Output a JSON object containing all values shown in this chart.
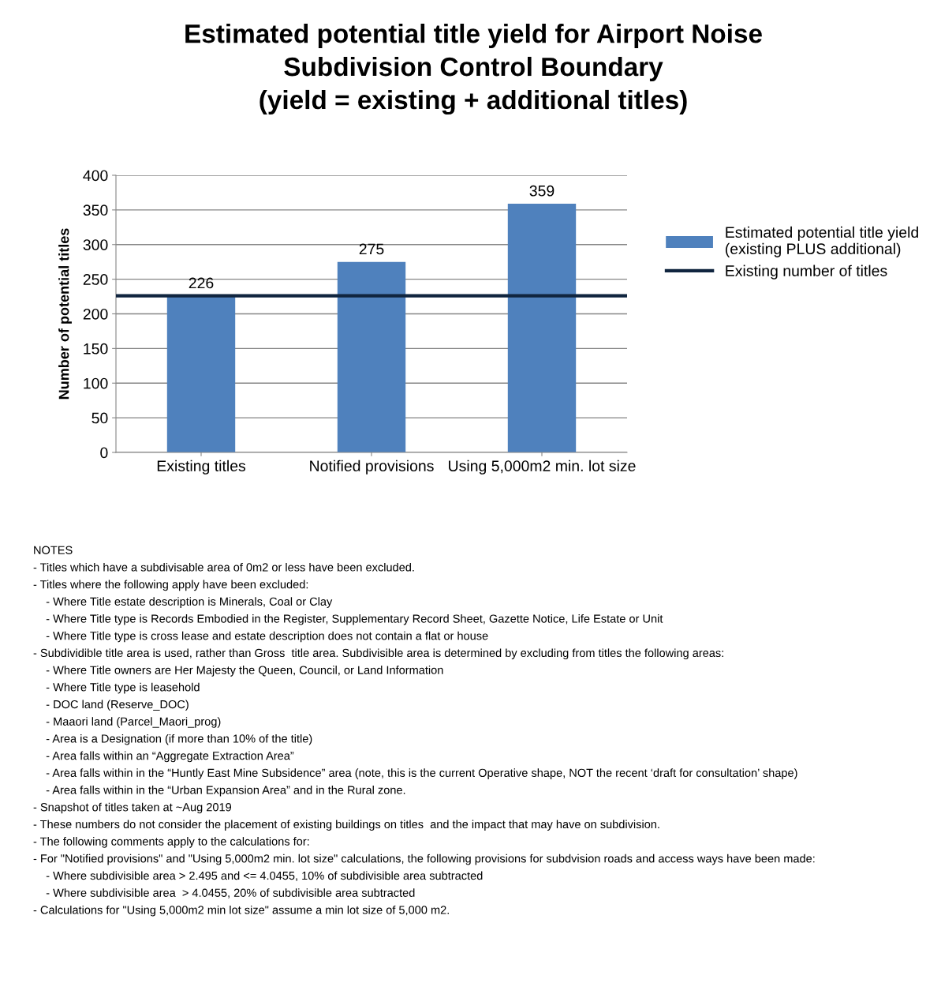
{
  "chart_data": {
    "type": "bar",
    "title": "Estimated potential title yield for Airport Noise\nSubdivision Control Boundary\n(yield = existing + additional titles)",
    "ylabel": "Number of potential titles",
    "categories": [
      "Existing titles",
      "Notified provisions",
      "Using 5,000m2 min. lot size"
    ],
    "series": [
      {
        "name": "Estimated potential title yield\n(existing PLUS additional)",
        "color": "#4f81bd",
        "values": [
          226,
          275,
          359
        ]
      }
    ],
    "data_labels": true,
    "ylim": [
      0,
      400
    ],
    "yticks": [
      0,
      50,
      100,
      150,
      200,
      250,
      300,
      350,
      400
    ],
    "grid": "y",
    "legend": "right",
    "ref_lines": [
      {
        "axis": "y",
        "value": 226,
        "label": "Existing number of titles",
        "color": "#10253f"
      }
    ],
    "annotations": [
      "NOTES",
      "- Titles which have a subdivisable area of 0m2 or less have been excluded.",
      "- Titles where the following apply have been excluded:",
      "    - Where Title estate description is Minerals, Coal or Clay",
      "    - Where Title type is Records Embodied in the Register, Supplementary Record Sheet, Gazette Notice, Life Estate or Unit",
      "    - Where Title type is cross lease and estate description does not contain a flat or house",
      "- Subdividible title area is used, rather than Gross  title area. Subdivisible area is determined by excluding from titles the following areas:",
      "    - Where Title owners are Her Majesty the Queen, Council, or Land Information",
      "    - Where Title type is leasehold",
      "    - DOC land (Reserve_DOC)",
      "    - Maaori land (Parcel_Maori_prog)",
      "    - Area is a Designation (if more than 10% of the title)",
      "    - Area falls within an “Aggregate Extraction Area”",
      "    - Area falls within in the “Huntly East Mine Subsidence” area (note, this is the current Operative shape, NOT the recent ‘draft for consultation’ shape)",
      "    - Area falls within in the “Urban Expansion Area” and in the Rural zone.",
      "- Snapshot of titles taken at ~Aug 2019",
      "- These numbers do not consider the placement of existing buildings on titles  and the impact that may have on subdivision.",
      "- The following comments apply to the calculations for:",
      "- For \"Notified provisions\" and \"Using 5,000m2 min. lot size\" calculations, the following provisions for subdvision roads and access ways have been made:",
      "    - Where subdivisible area > 2.495 and <= 4.0455, 10% of subdivisible area subtracted",
      "    - Where subdivisible area  > 4.0455, 20% of subdivisible area subtracted",
      "- Calculations for \"Using 5,000m2 min lot size\" assume a min lot size of 5,000 m2."
    ]
  }
}
